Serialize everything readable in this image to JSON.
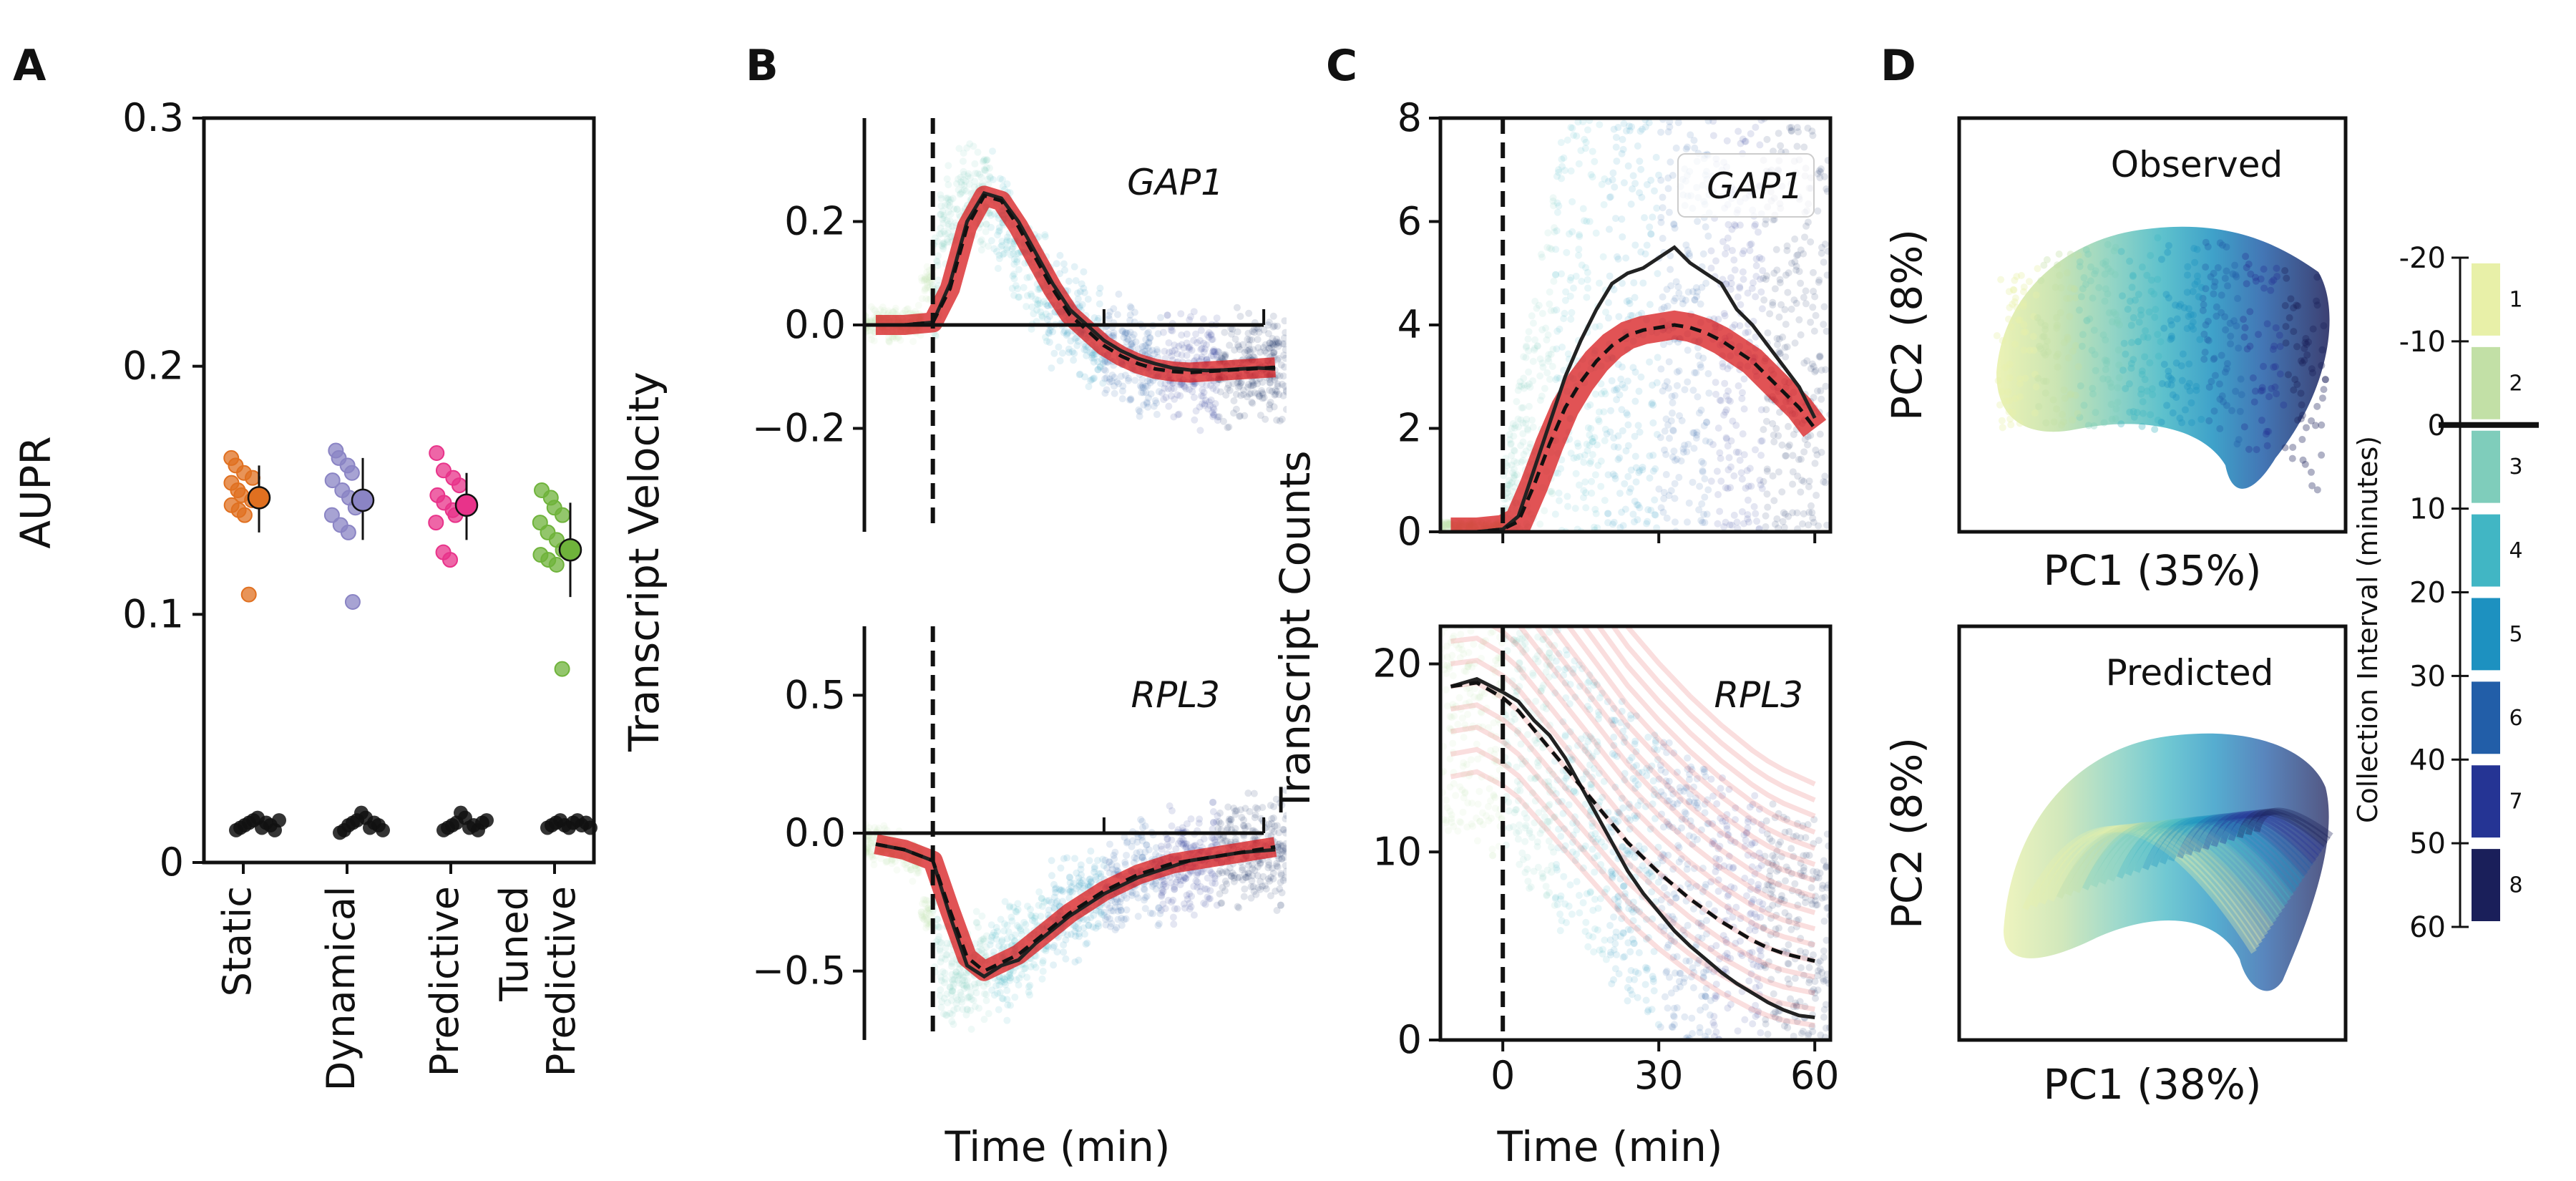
{
  "panels": {
    "A": {
      "letter": "A",
      "ylabel": "AUPR",
      "yticks": [
        "0",
        "0.1",
        "0.2",
        "0.3"
      ],
      "ylim": [
        0,
        0.3
      ],
      "categories": [
        "Static",
        "Dynamical",
        "Predictive",
        "Tuned\nPredictive"
      ],
      "category_lines": [
        [
          "Static"
        ],
        [
          "Dynamical"
        ],
        [
          "Predictive"
        ],
        [
          "Tuned",
          "Predictive"
        ]
      ],
      "colors": [
        "#e07020",
        "#8a84c4",
        "#e8338a",
        "#6fb33b"
      ],
      "points": [
        [
          0.163,
          0.16,
          0.157,
          0.155,
          0.153,
          0.15,
          0.148,
          0.146,
          0.144,
          0.142,
          0.14,
          0.108
        ],
        [
          0.166,
          0.163,
          0.16,
          0.157,
          0.154,
          0.15,
          0.147,
          0.143,
          0.14,
          0.136,
          0.133,
          0.105
        ],
        [
          0.165,
          0.158,
          0.155,
          0.152,
          0.148,
          0.145,
          0.142,
          0.14,
          0.137,
          0.125,
          0.122
        ],
        [
          0.15,
          0.147,
          0.143,
          0.14,
          0.137,
          0.133,
          0.13,
          0.126,
          0.124,
          0.122,
          0.12,
          0.078
        ]
      ],
      "means": [
        0.147,
        0.146,
        0.144,
        0.126
      ],
      "err": [
        [
          0.133,
          0.16
        ],
        [
          0.13,
          0.163
        ],
        [
          0.13,
          0.157
        ],
        [
          0.107,
          0.145
        ]
      ],
      "baseline": [
        [
          0.013,
          0.014,
          0.015,
          0.016,
          0.017,
          0.018,
          0.014,
          0.016,
          0.015,
          0.013,
          0.017
        ],
        [
          0.012,
          0.013,
          0.015,
          0.016,
          0.017,
          0.02,
          0.018,
          0.014,
          0.016,
          0.015,
          0.013
        ],
        [
          0.013,
          0.014,
          0.015,
          0.016,
          0.02,
          0.018,
          0.014,
          0.015,
          0.013,
          0.016,
          0.017
        ],
        [
          0.014,
          0.015,
          0.016,
          0.017,
          0.015,
          0.014,
          0.016,
          0.017,
          0.015,
          0.016,
          0.014
        ]
      ]
    },
    "B": {
      "letter": "B",
      "ylabel": "Transcript Velocity",
      "xlabel": "Time (min)",
      "top": {
        "gene": "GAP1",
        "yticks": [
          "0.2",
          "0.0",
          "−0.2"
        ],
        "ylim": [
          -0.4,
          0.4
        ],
        "t": [
          -10,
          -5,
          0,
          3,
          6,
          9,
          12,
          15,
          18,
          21,
          24,
          27,
          30,
          33,
          36,
          39,
          42,
          45,
          48,
          51,
          54,
          57,
          60
        ],
        "mean": [
          0,
          0,
          0.005,
          0.08,
          0.2,
          0.255,
          0.245,
          0.2,
          0.14,
          0.08,
          0.03,
          0.0,
          -0.03,
          -0.05,
          -0.065,
          -0.075,
          -0.083,
          -0.087,
          -0.088,
          -0.087,
          -0.085,
          -0.083,
          -0.085
        ],
        "pred": [
          0,
          0,
          0.005,
          0.07,
          0.19,
          0.25,
          0.24,
          0.19,
          0.13,
          0.07,
          0.02,
          -0.01,
          -0.04,
          -0.06,
          -0.075,
          -0.085,
          -0.09,
          -0.092,
          -0.09,
          -0.088,
          -0.086,
          -0.084,
          -0.082
        ]
      },
      "bottom": {
        "gene": "RPL3",
        "yticks": [
          "0.5",
          "0.0",
          "−0.5"
        ],
        "ylim": [
          -0.75,
          0.75
        ],
        "t": [
          -10,
          -5,
          0,
          3,
          6,
          9,
          12,
          15,
          18,
          21,
          24,
          27,
          30,
          33,
          36,
          39,
          42,
          45,
          48,
          51,
          54,
          57,
          60
        ],
        "mean": [
          -0.04,
          -0.06,
          -0.1,
          -0.3,
          -0.48,
          -0.52,
          -0.48,
          -0.46,
          -0.4,
          -0.35,
          -0.3,
          -0.26,
          -0.22,
          -0.19,
          -0.16,
          -0.14,
          -0.12,
          -0.1,
          -0.09,
          -0.08,
          -0.07,
          -0.065,
          -0.06
        ],
        "pred": [
          -0.04,
          -0.06,
          -0.1,
          -0.28,
          -0.45,
          -0.5,
          -0.47,
          -0.44,
          -0.39,
          -0.34,
          -0.29,
          -0.25,
          -0.21,
          -0.18,
          -0.15,
          -0.13,
          -0.11,
          -0.1,
          -0.09,
          -0.08,
          -0.07,
          -0.06,
          -0.05
        ]
      }
    },
    "C": {
      "letter": "C",
      "ylabel": "Transcript Counts",
      "xlabel": "Time (min)",
      "xticks": [
        "0",
        "30",
        "60"
      ],
      "top": {
        "gene": "GAP1",
        "yticks": [
          "0",
          "2",
          "4",
          "6",
          "8"
        ],
        "ylim": [
          0,
          8
        ],
        "t": [
          -10,
          -5,
          0,
          3,
          6,
          9,
          12,
          15,
          18,
          21,
          24,
          27,
          30,
          33,
          36,
          39,
          42,
          45,
          48,
          51,
          54,
          57,
          60
        ],
        "observed": [
          0,
          0,
          0.05,
          0.3,
          1.2,
          2.1,
          3.0,
          3.7,
          4.3,
          4.8,
          5.0,
          5.1,
          5.3,
          5.5,
          5.2,
          5.0,
          4.8,
          4.3,
          4.0,
          3.6,
          3.2,
          2.8,
          2.2
        ],
        "predicted": [
          0,
          0,
          0.05,
          0.2,
          0.9,
          1.7,
          2.4,
          2.9,
          3.3,
          3.6,
          3.8,
          3.9,
          3.95,
          4.0,
          3.95,
          3.85,
          3.7,
          3.5,
          3.3,
          3.0,
          2.7,
          2.4,
          2.0
        ]
      },
      "bottom": {
        "gene": "RPL3",
        "yticks": [
          "0",
          "10",
          "20"
        ],
        "ylim": [
          0,
          22
        ],
        "t": [
          -10,
          -5,
          0,
          3,
          6,
          9,
          12,
          15,
          18,
          21,
          24,
          27,
          30,
          33,
          36,
          39,
          42,
          45,
          48,
          51,
          54,
          57,
          60
        ],
        "observed": [
          18.8,
          19.2,
          18.5,
          18.0,
          17.0,
          16.2,
          15.0,
          13.5,
          12.0,
          10.5,
          9.0,
          7.8,
          6.8,
          5.8,
          5.0,
          4.3,
          3.6,
          3.0,
          2.5,
          2.0,
          1.6,
          1.3,
          1.2
        ],
        "predicted": [
          18.8,
          19.0,
          18.2,
          17.5,
          16.5,
          15.5,
          14.5,
          13.5,
          12.5,
          11.5,
          10.5,
          9.7,
          8.9,
          8.2,
          7.5,
          6.9,
          6.3,
          5.8,
          5.3,
          4.9,
          4.6,
          4.4,
          4.2
        ]
      }
    },
    "D": {
      "letter": "D",
      "top": {
        "title": "Observed",
        "xlabel": "PC1 (35%)",
        "ylabel": "PC2 (8%)"
      },
      "bottom": {
        "title": "Predicted",
        "xlabel": "PC1 (38%)",
        "ylabel": "PC2 (8%)"
      }
    },
    "colorbar": {
      "label": "Collection Interval (minutes)",
      "ticks": [
        "-20",
        "-10",
        "0",
        "10",
        "20",
        "30",
        "40",
        "50",
        "60"
      ],
      "bins": [
        "1",
        "2",
        "3",
        "4",
        "5",
        "6",
        "7",
        "8"
      ],
      "colors": [
        "#e8f0a8",
        "#c2e0a6",
        "#7fcdbb",
        "#41b6c4",
        "#1d91c0",
        "#225ea8",
        "#253494",
        "#1a1f5a"
      ]
    }
  },
  "chart_data": [
    {
      "type": "scatter",
      "panel": "A",
      "ylabel": "AUPR",
      "ylim": [
        0,
        0.3
      ],
      "categories": [
        "Static",
        "Dynamical",
        "Predictive",
        "Tuned Predictive"
      ],
      "series": [
        {
          "name": "Static",
          "mean": 0.147
        },
        {
          "name": "Dynamical",
          "mean": 0.146
        },
        {
          "name": "Predictive",
          "mean": 0.144
        },
        {
          "name": "Tuned Predictive",
          "mean": 0.126
        }
      ]
    },
    {
      "type": "line",
      "panel": "B-top",
      "title": "GAP1",
      "ylabel": "Transcript Velocity",
      "xlabel": "Time (min)",
      "ylim": [
        -0.4,
        0.4
      ]
    },
    {
      "type": "line",
      "panel": "B-bottom",
      "title": "RPL3",
      "ylabel": "Transcript Velocity",
      "xlabel": "Time (min)",
      "ylim": [
        -0.75,
        0.75
      ]
    },
    {
      "type": "line",
      "panel": "C-top",
      "title": "GAP1",
      "ylabel": "Transcript Counts",
      "xlabel": "Time (min)",
      "ylim": [
        0,
        8
      ]
    },
    {
      "type": "line",
      "panel": "C-bottom",
      "title": "RPL3",
      "ylabel": "Transcript Counts",
      "xlabel": "Time (min)",
      "ylim": [
        0,
        22
      ]
    },
    {
      "type": "scatter",
      "panel": "D-top",
      "title": "Observed",
      "xlabel": "PC1 (35%)",
      "ylabel": "PC2 (8%)"
    },
    {
      "type": "scatter",
      "panel": "D-bottom",
      "title": "Predicted",
      "xlabel": "PC1 (38%)",
      "ylabel": "PC2 (8%)"
    }
  ]
}
